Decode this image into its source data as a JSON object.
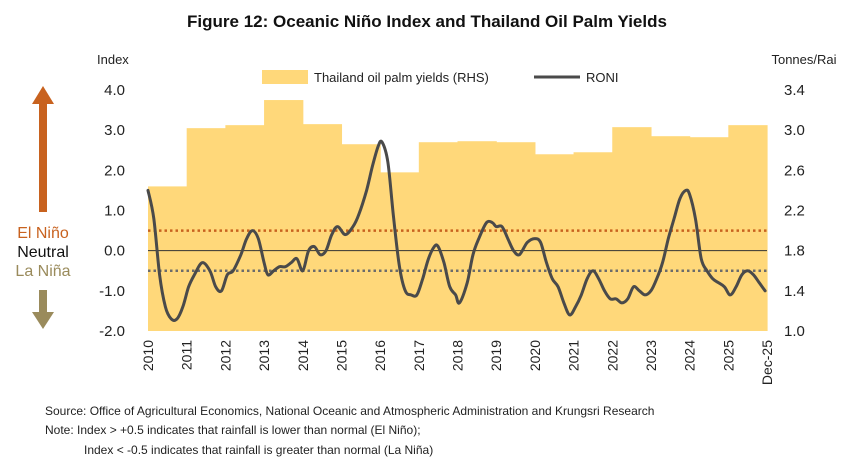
{
  "title": "Figure 12: Oceanic Niño Index and Thailand Oil Palm Yields",
  "left_axis_label": "Index",
  "right_axis_label": "Tonnes/Rai",
  "legend": {
    "yields_label": "Thailand oil palm yields (RHS)",
    "roni_label": "RONI"
  },
  "enso_labels": {
    "el_nino": "El Niño",
    "neutral": "Neutral",
    "la_nina": "La Niña"
  },
  "colors": {
    "yields_fill": "#FFD87A",
    "roni_line": "#4A4A4A",
    "el_nino": "#C8621F",
    "la_nina": "#9A8B5C",
    "threshold_upper": "#C8621F",
    "threshold_lower": "#6B6B6B"
  },
  "footnotes": {
    "source": "Source: Office of Agricultural Economics, National Oceanic and Atmospheric Administration and Krungsri Research",
    "note1": "Note: Index > +0.5 indicates that rainfall is lower than normal (El Niño);",
    "note2": "Index < -0.5 indicates that rainfall is greater than normal (La Niña)"
  },
  "chart_data": {
    "type": "line",
    "title": "Figure 12: Oceanic Niño Index and Thailand Oil Palm Yields",
    "x_tick_labels": [
      "2010",
      "2011",
      "2012",
      "2013",
      "2014",
      "2015",
      "2016",
      "2017",
      "2018",
      "2019",
      "2020",
      "2021",
      "2022",
      "2023",
      "2024",
      "2025",
      "Dec-25"
    ],
    "x_range": [
      2010.0,
      2026.0
    ],
    "left_axis": {
      "label": "Index",
      "min": -2.0,
      "max": 4.0,
      "ticks": [
        "4.0",
        "3.0",
        "2.0",
        "1.0",
        "0.0",
        "-1.0",
        "-2.0"
      ],
      "tick_values": [
        4,
        3,
        2,
        1,
        0,
        -1,
        -2
      ]
    },
    "right_axis": {
      "label": "Tonnes/Rai",
      "min": 1.0,
      "max": 3.4,
      "ticks": [
        "3.4",
        "3.0",
        "2.6",
        "2.2",
        "1.8",
        "1.4",
        "1.0"
      ],
      "tick_values": [
        3.4,
        3.0,
        2.6,
        2.2,
        1.8,
        1.4,
        1.0
      ]
    },
    "thresholds": [
      0.5,
      -0.5
    ],
    "zero_line": true,
    "legend_position": "top-center",
    "series": [
      {
        "name": "Thailand oil palm yields (RHS)",
        "type": "area",
        "axis": "right",
        "years": [
          2010,
          2011,
          2012,
          2013,
          2014,
          2015,
          2016,
          2017,
          2018,
          2019,
          2020,
          2021,
          2022,
          2023,
          2024,
          2025
        ],
        "values": [
          2.44,
          3.02,
          3.05,
          3.3,
          3.06,
          2.86,
          2.58,
          2.88,
          2.89,
          2.88,
          2.76,
          2.78,
          3.03,
          2.94,
          2.93,
          3.05
        ]
      },
      {
        "name": "RONI",
        "type": "line",
        "axis": "left",
        "x": [
          2010.0,
          2010.15,
          2010.3,
          2010.45,
          2010.6,
          2010.75,
          2010.9,
          2011.05,
          2011.2,
          2011.4,
          2011.6,
          2011.75,
          2011.9,
          2012.05,
          2012.2,
          2012.4,
          2012.55,
          2012.7,
          2012.85,
          2013.0,
          2013.1,
          2013.25,
          2013.4,
          2013.55,
          2013.7,
          2013.85,
          2014.0,
          2014.15,
          2014.3,
          2014.45,
          2014.6,
          2014.75,
          2014.9,
          2015.1,
          2015.3,
          2015.45,
          2015.65,
          2015.8,
          2015.95,
          2016.05,
          2016.2,
          2016.35,
          2016.5,
          2016.65,
          2016.8,
          2016.95,
          2017.1,
          2017.25,
          2017.4,
          2017.5,
          2017.65,
          2017.8,
          2017.95,
          2018.05,
          2018.25,
          2018.4,
          2018.55,
          2018.75,
          2018.9,
          2019.0,
          2019.15,
          2019.3,
          2019.45,
          2019.6,
          2019.8,
          2020.0,
          2020.15,
          2020.3,
          2020.45,
          2020.6,
          2020.75,
          2020.9,
          2021.05,
          2021.2,
          2021.35,
          2021.5,
          2021.65,
          2021.8,
          2021.95,
          2022.1,
          2022.25,
          2022.4,
          2022.55,
          2022.7,
          2022.85,
          2023.0,
          2023.15,
          2023.3,
          2023.45,
          2023.6,
          2023.75,
          2023.9,
          2024.0,
          2024.15,
          2024.3,
          2024.45,
          2024.6,
          2024.75,
          2024.9,
          2025.05,
          2025.2,
          2025.35,
          2025.5,
          2025.65,
          2025.8,
          2025.95
        ],
        "values": [
          1.5,
          0.8,
          -0.6,
          -1.4,
          -1.7,
          -1.7,
          -1.4,
          -0.9,
          -0.6,
          -0.3,
          -0.5,
          -0.9,
          -1.0,
          -0.6,
          -0.5,
          -0.1,
          0.3,
          0.5,
          0.3,
          -0.3,
          -0.6,
          -0.5,
          -0.4,
          -0.4,
          -0.3,
          -0.2,
          -0.5,
          0.0,
          0.1,
          -0.1,
          0.0,
          0.4,
          0.6,
          0.4,
          0.6,
          0.9,
          1.5,
          2.1,
          2.6,
          2.7,
          2.2,
          0.8,
          -0.4,
          -1.0,
          -1.1,
          -1.1,
          -0.7,
          -0.2,
          0.1,
          0.1,
          -0.3,
          -0.9,
          -1.1,
          -1.3,
          -0.8,
          -0.1,
          0.3,
          0.7,
          0.7,
          0.6,
          0.6,
          0.3,
          0.0,
          -0.1,
          0.2,
          0.3,
          0.2,
          -0.3,
          -0.7,
          -0.9,
          -1.3,
          -1.6,
          -1.4,
          -1.1,
          -0.7,
          -0.5,
          -0.7,
          -1.0,
          -1.2,
          -1.2,
          -1.3,
          -1.2,
          -0.9,
          -1.0,
          -1.1,
          -1.0,
          -0.7,
          -0.3,
          0.3,
          0.8,
          1.3,
          1.5,
          1.4,
          0.8,
          -0.2,
          -0.5,
          -0.7,
          -0.8,
          -0.9,
          -1.1,
          -0.9,
          -0.6,
          -0.5,
          -0.6,
          -0.8,
          -1.0
        ]
      }
    ]
  }
}
